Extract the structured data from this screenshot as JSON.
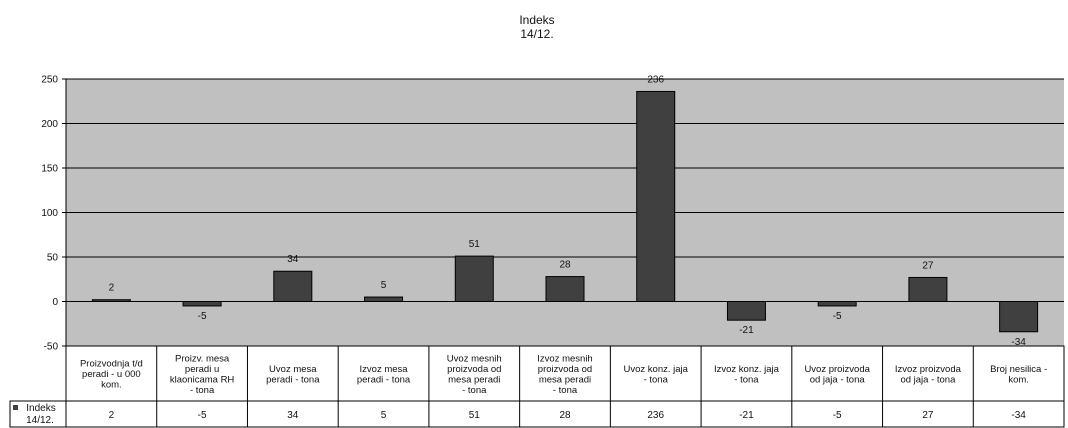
{
  "chart_data": {
    "type": "bar",
    "title": "Indeks",
    "subtitle": "14/12.",
    "xlabel": "",
    "ylabel": "",
    "ylim": [
      -50,
      250
    ],
    "yticks": [
      -50,
      0,
      50,
      100,
      150,
      200,
      250
    ],
    "grid": true,
    "legend_placement": "data-table-left",
    "colors": {
      "bar": "#404040",
      "plot_bg": "#c0c0c0",
      "border": "#000000"
    },
    "categories": [
      [
        "Proizvodnja t/d",
        "peradi - u 000",
        "kom."
      ],
      [
        "Proizv. mesa",
        "peradi u",
        "klaonicama RH",
        "- tona"
      ],
      [
        "Uvoz mesa",
        "peradi - tona"
      ],
      [
        "Izvoz mesa",
        "peradi - tona"
      ],
      [
        "Uvoz mesnih",
        "proizvoda od",
        "mesa peradi",
        "- tona"
      ],
      [
        "Izvoz mesnih",
        "proizvoda od",
        "mesa peradi",
        "- tona"
      ],
      [
        "Uvoz konz. jaja",
        "- tona"
      ],
      [
        "Izvoz konz. jaja",
        "- tona"
      ],
      [
        "Uvoz proizvoda",
        "od jaja - tona"
      ],
      [
        "Izvoz proizvoda",
        "od jaja - tona"
      ],
      [
        "Broj nesilica -",
        "kom."
      ]
    ],
    "series": [
      {
        "name": "Indeks 14/12.",
        "values": [
          2,
          -5,
          34,
          5,
          51,
          28,
          236,
          -21,
          -5,
          27,
          -34
        ]
      }
    ],
    "legend_label": [
      "Indeks",
      "14/12."
    ]
  }
}
